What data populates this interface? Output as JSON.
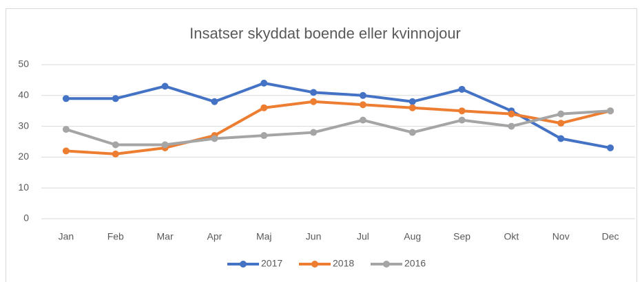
{
  "chart_data": {
    "type": "line",
    "title": "Insatser skyddat boende eller kvinnojour",
    "categories": [
      "Jan",
      "Feb",
      "Mar",
      "Apr",
      "Maj",
      "Jun",
      "Jul",
      "Aug",
      "Sep",
      "Okt",
      "Nov",
      "Dec"
    ],
    "series": [
      {
        "name": "2017",
        "color": "#4472c4",
        "values": [
          39,
          39,
          43,
          38,
          44,
          41,
          40,
          38,
          42,
          35,
          26,
          23
        ]
      },
      {
        "name": "2018",
        "color": "#ed7d31",
        "values": [
          22,
          21,
          23,
          27,
          36,
          38,
          37,
          36,
          35,
          34,
          31,
          35
        ]
      },
      {
        "name": "2016",
        "color": "#a5a5a5",
        "values": [
          29,
          24,
          24,
          26,
          27,
          28,
          32,
          28,
          32,
          30,
          34,
          35
        ]
      }
    ],
    "ylim": [
      0,
      50
    ],
    "yticks": [
      0,
      10,
      20,
      30,
      40,
      50
    ],
    "grid": true,
    "legend": "bottom"
  }
}
